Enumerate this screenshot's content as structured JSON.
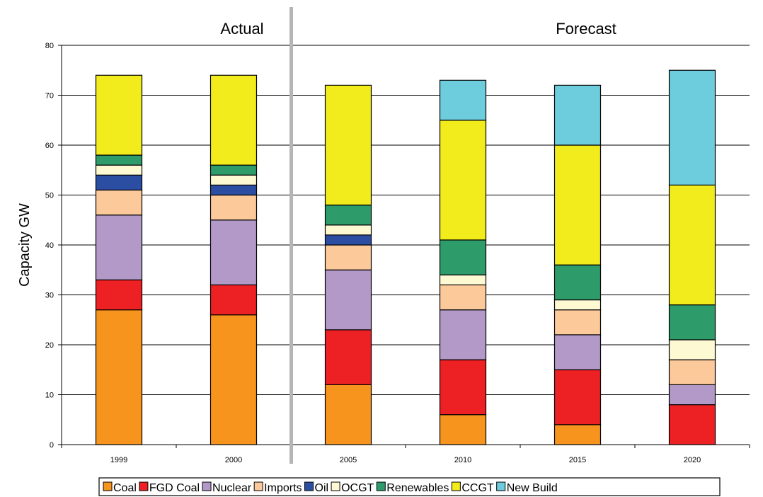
{
  "chart_data": {
    "type": "bar",
    "stacked": true,
    "xlabel": "",
    "ylabel": "Capacity GW",
    "ylim": [
      0,
      80
    ],
    "yticks": [
      0,
      10,
      20,
      30,
      40,
      50,
      60,
      70,
      80
    ],
    "grid": true,
    "legend_position": "bottom",
    "section_labels": [
      "Actual",
      "Forecast"
    ],
    "categories": [
      "1999",
      "2000",
      "2005",
      "2010",
      "2015",
      "2020"
    ],
    "series": [
      {
        "name": "Coal",
        "color": "#f7941d",
        "values": [
          27,
          26,
          12,
          6,
          4,
          0
        ]
      },
      {
        "name": "FGD Coal",
        "color": "#ed2024",
        "values": [
          6,
          6,
          11,
          11,
          11,
          8
        ]
      },
      {
        "name": "Nuclear",
        "color": "#b299c8",
        "values": [
          13,
          13,
          12,
          10,
          7,
          4
        ]
      },
      {
        "name": "Imports",
        "color": "#fcc99b",
        "values": [
          5,
          5,
          5,
          5,
          5,
          5
        ]
      },
      {
        "name": "Oil",
        "color": "#2b4ea2",
        "values": [
          3,
          2,
          2,
          0,
          0,
          0
        ]
      },
      {
        "name": "OCGT",
        "color": "#fdfad3",
        "values": [
          2,
          2,
          2,
          2,
          2,
          4
        ]
      },
      {
        "name": "Renewables",
        "color": "#2e9b6b",
        "values": [
          2,
          2,
          4,
          7,
          7,
          7
        ]
      },
      {
        "name": "CCGT",
        "color": "#f2ec1c",
        "values": [
          16,
          18,
          24,
          24,
          24,
          24
        ]
      },
      {
        "name": "New Build",
        "color": "#6dcddd",
        "values": [
          0,
          0,
          0,
          8,
          12,
          23
        ]
      }
    ]
  }
}
